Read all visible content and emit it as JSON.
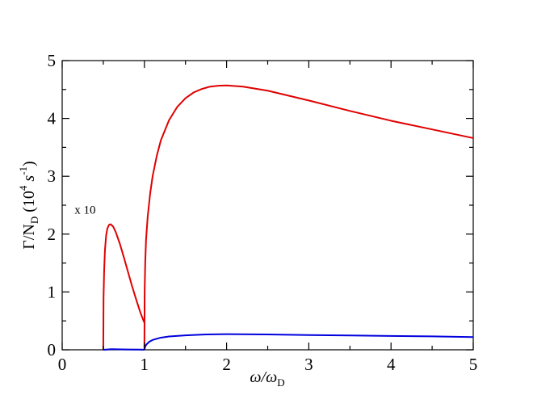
{
  "chart_data": {
    "type": "line",
    "title": "",
    "xlabel": {
      "main": "ω/ω",
      "sub": "D"
    },
    "ylabel": {
      "prefix": "Γ/N",
      "sub": "D",
      "paren_open": " (10",
      "sup1": "4",
      "s": " s",
      "sup2": "-1",
      "paren_close": ")"
    },
    "xlim": [
      0,
      5
    ],
    "ylim": [
      0,
      5
    ],
    "x_ticks": [
      0,
      1,
      2,
      3,
      4,
      5
    ],
    "y_ticks": [
      0,
      1,
      2,
      3,
      4,
      5
    ],
    "x_tick_labels": [
      "0",
      "1",
      "2",
      "3",
      "4",
      "5"
    ],
    "y_tick_labels": [
      "0",
      "1",
      "2",
      "3",
      "4",
      "5"
    ],
    "grid": false,
    "annotation": {
      "text": "x 10",
      "x": 0.15,
      "y": 2.35
    },
    "series": [
      {
        "color": "#e00000",
        "segments": [
          [
            [
              0.5,
              0
            ],
            [
              0.503,
              0.9
            ],
            [
              0.51,
              1.35
            ],
            [
              0.52,
              1.72
            ],
            [
              0.535,
              1.98
            ],
            [
              0.55,
              2.1
            ],
            [
              0.57,
              2.16
            ],
            [
              0.59,
              2.17
            ],
            [
              0.62,
              2.13
            ],
            [
              0.65,
              2.04
            ],
            [
              0.7,
              1.84
            ],
            [
              0.75,
              1.6
            ],
            [
              0.8,
              1.35
            ],
            [
              0.85,
              1.1
            ],
            [
              0.9,
              0.87
            ],
            [
              0.95,
              0.65
            ],
            [
              0.99,
              0.5
            ],
            [
              1.0,
              0.47
            ]
          ],
          [
            [
              1.0,
              0
            ],
            [
              1.003,
              1.0
            ],
            [
              1.01,
              1.5
            ],
            [
              1.02,
              1.9
            ],
            [
              1.04,
              2.3
            ],
            [
              1.07,
              2.7
            ],
            [
              1.1,
              3.0
            ],
            [
              1.15,
              3.35
            ],
            [
              1.2,
              3.62
            ],
            [
              1.3,
              3.97
            ],
            [
              1.4,
              4.2
            ],
            [
              1.5,
              4.35
            ],
            [
              1.6,
              4.45
            ],
            [
              1.7,
              4.51
            ],
            [
              1.8,
              4.55
            ],
            [
              1.9,
              4.565
            ],
            [
              2.0,
              4.57
            ],
            [
              2.2,
              4.55
            ],
            [
              2.5,
              4.48
            ],
            [
              3.0,
              4.31
            ],
            [
              3.5,
              4.13
            ],
            [
              4.0,
              3.96
            ],
            [
              4.5,
              3.81
            ],
            [
              5.0,
              3.66
            ]
          ]
        ]
      },
      {
        "color": "#0000dd",
        "segments": [
          [
            [
              0.5,
              0
            ],
            [
              0.6,
              0.01
            ],
            [
              0.8,
              0.005
            ],
            [
              0.95,
              0.003
            ],
            [
              1.0,
              0.0
            ]
          ],
          [
            [
              1.0,
              0.0
            ],
            [
              1.01,
              0.06
            ],
            [
              1.03,
              0.1
            ],
            [
              1.06,
              0.14
            ],
            [
              1.1,
              0.17
            ],
            [
              1.2,
              0.21
            ],
            [
              1.3,
              0.23
            ],
            [
              1.5,
              0.25
            ],
            [
              1.75,
              0.265
            ],
            [
              2.0,
              0.27
            ],
            [
              2.5,
              0.265
            ],
            [
              3.0,
              0.255
            ],
            [
              3.5,
              0.248
            ],
            [
              4.0,
              0.24
            ],
            [
              4.5,
              0.232
            ],
            [
              5.0,
              0.22
            ]
          ]
        ]
      }
    ]
  }
}
